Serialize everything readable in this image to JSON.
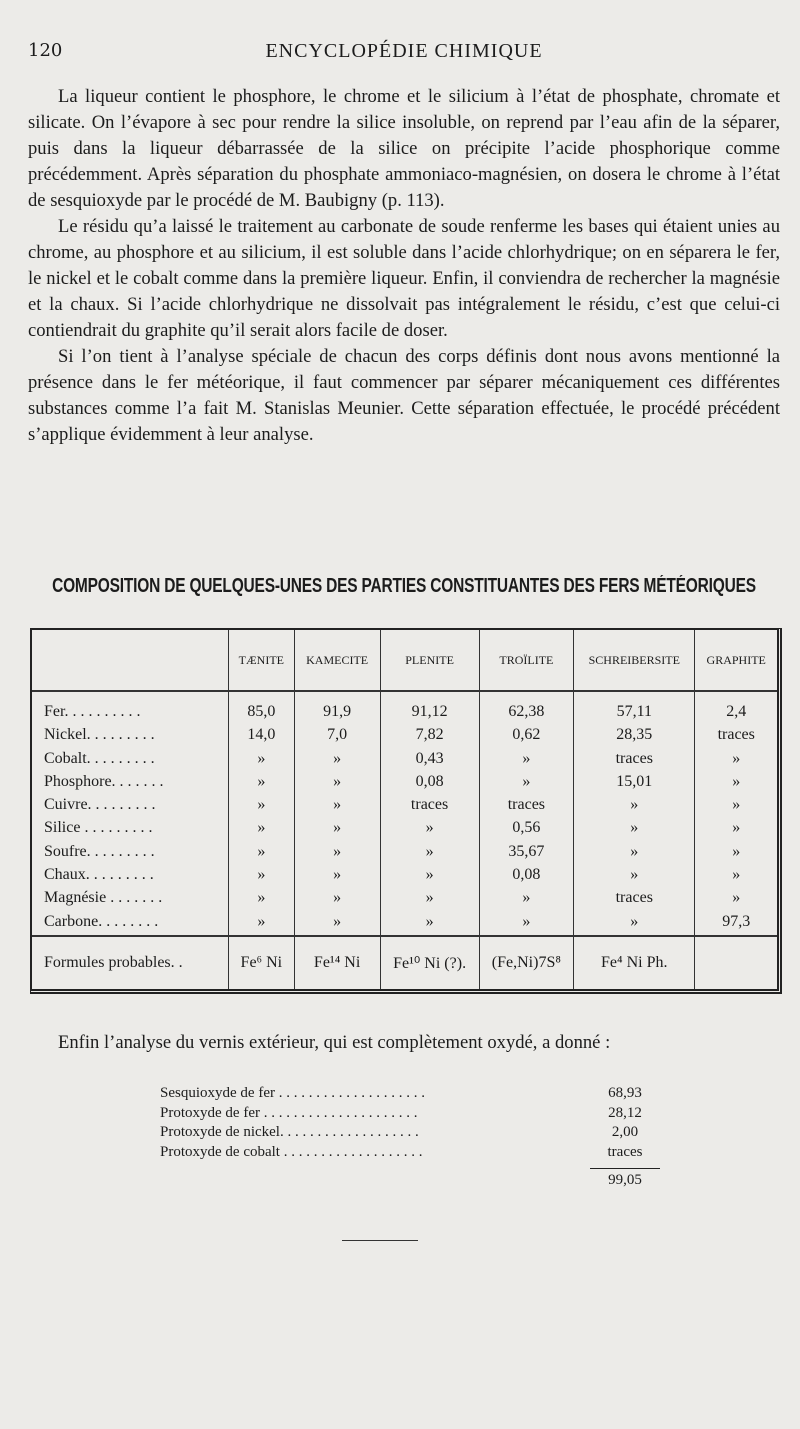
{
  "header": {
    "page_number": "120",
    "running_title": "ENCYCLOPÉDIE CHIMIQUE"
  },
  "paragraphs": [
    "La liqueur contient le phosphore, le chrome et le silicium à l’état de phosphate, chromate et silicate. On l’évapore à sec pour rendre la silice insoluble, on reprend par l’eau afin de la séparer, puis dans la liqueur débarrassée de la silice on précipite l’acide phosphorique comme précédemment. Après séparation du phosphate ammoniaco-magnésien, on dosera le chrome à l’état de sesquioxyde par le procédé de M. Baubigny (p. 113).",
    "Le résidu qu’a laissé le traitement au carbonate de soude renferme les bases qui étaient unies au chrome, au phosphore et au silicium, il est soluble dans l’acide chlorhydrique; on en séparera le fer, le nickel et le cobalt comme dans la première liqueur. Enfin, il conviendra de rechercher la magnésie et la chaux. Si l’acide chlorhydrique ne dissolvait pas intégralement le résidu, c’est que celui-ci contiendrait du graphite qu’il serait alors facile de doser.",
    "Si l’on tient à l’analyse spéciale de chacun des corps définis dont nous avons mentionné la présence dans le fer météorique, il faut commencer par séparer mécaniquement ces différentes substances comme l’a fait M. Stanislas Meunier. Cette séparation effectuée, le procédé précédent s’applique évidemment à leur analyse."
  ],
  "table": {
    "title": "COMPOSITION DE QUELQUES-UNES DES PARTIES CONSTITUANTES DES FERS MÉTÉORIQUES",
    "columns": [
      "",
      "TÆNITE",
      "KAMECITE",
      "PLENITE",
      "TROÏLITE",
      "SCHREIBERSITE",
      "GRAPHITE"
    ],
    "rows": [
      [
        "Fer. . . . . . . . . .",
        "85,0",
        "91,9",
        "91,12",
        "62,38",
        "57,11",
        "2,4"
      ],
      [
        "Nickel. . . . . . . . .",
        "14,0",
        "7,0",
        "7,82",
        "0,62",
        "28,35",
        "traces"
      ],
      [
        "Cobalt. . . . . . . . .",
        "»",
        "»",
        "0,43",
        "»",
        "traces",
        "»"
      ],
      [
        "Phosphore. . . . . . .",
        "»",
        "»",
        "0,08",
        "»",
        "15,01",
        "»"
      ],
      [
        "Cuivre. . . . . . . . .",
        "»",
        "»",
        "traces",
        "traces",
        "»",
        "»"
      ],
      [
        "Silice . . . . . . . . .",
        "»",
        "»",
        "»",
        "0,56",
        "»",
        "»"
      ],
      [
        "Soufre. . . . . . . . .",
        "»",
        "»",
        "»",
        "35,67",
        "»",
        "»"
      ],
      [
        "Chaux. . . . . . . . .",
        "»",
        "»",
        "»",
        "0,08",
        "»",
        "»"
      ],
      [
        "Magnésie . . . . . . .",
        "»",
        "»",
        "»",
        "»",
        "traces",
        "»"
      ],
      [
        "Carbone. . . . . . . .",
        "»",
        "»",
        "»",
        "»",
        "»",
        "97,3"
      ]
    ],
    "formulas": [
      "Formules probables. .",
      "Fe⁶ Ni",
      "Fe¹⁴ Ni",
      "Fe¹⁰ Ni (?).",
      "(Fe,Ni)7S⁸",
      "Fe⁴ Ni Ph.",
      ""
    ]
  },
  "analysis": {
    "lead": "Enfin l’analyse du vernis extérieur, qui est complètement oxydé, a donné :",
    "items": [
      {
        "label": "Sesquioxyde de fer . . . . . . . . . . . . . . . . . . . .",
        "value": "68,93"
      },
      {
        "label": "Protoxyde de fer . . . . . . . . . . . . . . . . . . . . .",
        "value": "28,12"
      },
      {
        "label": "Protoxyde de nickel. . . . . . . . . . . . . . . . . . .",
        "value": "2,00"
      },
      {
        "label": "Protoxyde de cobalt . . . . . . . . . . . . . . . . . . .",
        "value": "traces"
      }
    ],
    "total": "99,05"
  }
}
